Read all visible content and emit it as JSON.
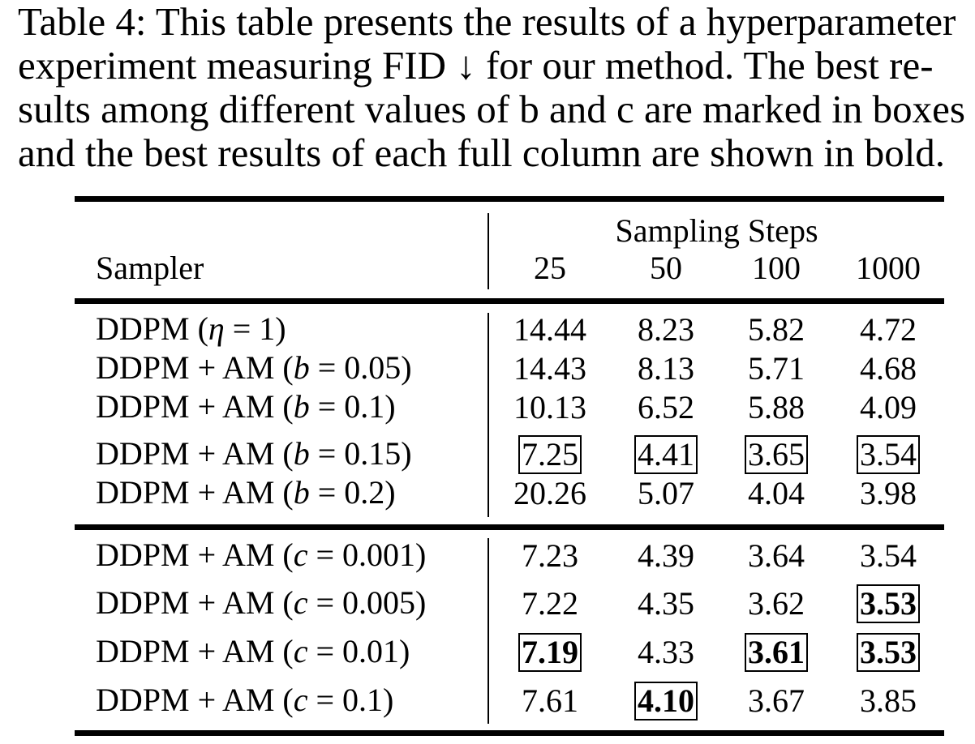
{
  "caption": {
    "lines": [
      "Table 4: This table presents the results of a hyperparameter",
      "experiment measuring FID ↓ for our method. The best re-",
      "sults among different values of b and c are marked in boxes",
      "and the best results of each full column are shown in bold."
    ]
  },
  "table": {
    "header": {
      "group_label": "Sampling Steps",
      "sampler_label": "Sampler",
      "steps": [
        "25",
        "50",
        "100",
        "1000"
      ]
    },
    "group_b": [
      {
        "prefix": "DDPM (",
        "var": "η",
        "rest": " = 1)",
        "values": [
          "14.44",
          "8.23",
          "5.82",
          "4.72"
        ],
        "boxed": [
          false,
          false,
          false,
          false
        ],
        "bold": [
          false,
          false,
          false,
          false
        ]
      },
      {
        "prefix": "DDPM + AM (",
        "var": "b",
        "rest": " = 0.05)",
        "values": [
          "14.43",
          "8.13",
          "5.71",
          "4.68"
        ],
        "boxed": [
          false,
          false,
          false,
          false
        ],
        "bold": [
          false,
          false,
          false,
          false
        ]
      },
      {
        "prefix": "DDPM + AM (",
        "var": "b",
        "rest": " = 0.1)",
        "values": [
          "10.13",
          "6.52",
          "5.88",
          "4.09"
        ],
        "boxed": [
          false,
          false,
          false,
          false
        ],
        "bold": [
          false,
          false,
          false,
          false
        ]
      },
      {
        "prefix": "DDPM + AM (",
        "var": "b",
        "rest": " = 0.15)",
        "values": [
          "7.25",
          "4.41",
          "3.65",
          "3.54"
        ],
        "boxed": [
          true,
          true,
          true,
          true
        ],
        "bold": [
          false,
          false,
          false,
          false
        ]
      },
      {
        "prefix": "DDPM + AM (",
        "var": "b",
        "rest": " = 0.2)",
        "values": [
          "20.26",
          "5.07",
          "4.04",
          "3.98"
        ],
        "boxed": [
          false,
          false,
          false,
          false
        ],
        "bold": [
          false,
          false,
          false,
          false
        ]
      }
    ],
    "group_c": [
      {
        "prefix": "DDPM + AM (",
        "var": "c",
        "rest": " = 0.001)",
        "values": [
          "7.23",
          "4.39",
          "3.64",
          "3.54"
        ],
        "boxed": [
          false,
          false,
          false,
          false
        ],
        "bold": [
          false,
          false,
          false,
          false
        ]
      },
      {
        "prefix": "DDPM + AM (",
        "var": "c",
        "rest": " = 0.005)",
        "values": [
          "7.22",
          "4.35",
          "3.62",
          "3.53"
        ],
        "boxed": [
          false,
          false,
          false,
          true
        ],
        "bold": [
          false,
          false,
          false,
          true
        ]
      },
      {
        "prefix": "DDPM + AM (",
        "var": "c",
        "rest": " = 0.01)",
        "values": [
          "7.19",
          "4.33",
          "3.61",
          "3.53"
        ],
        "boxed": [
          true,
          false,
          true,
          true
        ],
        "bold": [
          true,
          false,
          true,
          true
        ]
      },
      {
        "prefix": "DDPM + AM (",
        "var": "c",
        "rest": " = 0.1)",
        "values": [
          "7.61",
          "4.10",
          "3.67",
          "3.85"
        ],
        "boxed": [
          false,
          true,
          false,
          false
        ],
        "bold": [
          false,
          true,
          false,
          false
        ]
      }
    ]
  }
}
